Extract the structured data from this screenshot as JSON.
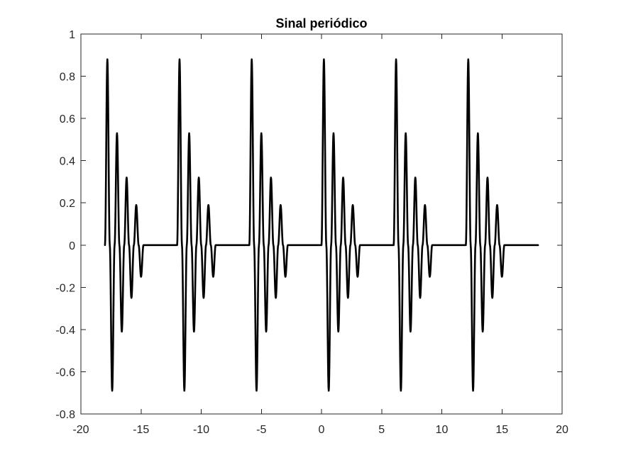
{
  "chart_data": {
    "type": "line",
    "title": "Sinal periódico",
    "xlabel": "",
    "ylabel": "",
    "xlim": [
      -20,
      20
    ],
    "ylim": [
      -0.8,
      1
    ],
    "xticks": [
      -20,
      -15,
      -10,
      -5,
      0,
      5,
      10,
      15,
      20
    ],
    "xtick_labels": [
      "-20",
      "-15",
      "-10",
      "-5",
      "0",
      "5",
      "10",
      "15",
      "20"
    ],
    "yticks": [
      -0.8,
      -0.6,
      -0.4,
      -0.2,
      0,
      0.2,
      0.4,
      0.6,
      0.8,
      1
    ],
    "ytick_labels": [
      "-0.8",
      "-0.6",
      "-0.4",
      "-0.2",
      "0",
      "0.2",
      "0.4",
      "0.6",
      "0.8",
      "1"
    ],
    "grid": false,
    "line_color": "#000000",
    "series": [
      {
        "x": [
          -18.0,
          -17.8,
          -17.6,
          -17.4,
          -17.2,
          -17.0,
          -16.8,
          -16.6,
          -16.4,
          -16.2,
          -16.0,
          -15.8,
          -15.6,
          -15.4,
          -15.2,
          -15.0,
          -14.8,
          -14.6,
          -14.4,
          -14.2,
          -14.0,
          -12.0,
          -11.8,
          -11.6,
          -11.4,
          -11.2,
          -11.0,
          -10.8,
          -10.6,
          -10.4,
          -10.2,
          -10.0,
          -9.8,
          -9.6,
          -9.4,
          -9.2,
          -9.0,
          -8.8,
          -8.6,
          -8.4,
          -8.2,
          -8.0,
          -6.0,
          -5.8,
          -5.6,
          -5.4,
          -5.2,
          -5.0,
          -4.8,
          -4.6,
          -4.4,
          -4.2,
          -4.0,
          -3.8,
          -3.6,
          -3.4,
          -3.2,
          -3.0,
          -2.8,
          -2.6,
          -2.4,
          -2.2,
          -2.0,
          0.0,
          0.2,
          0.4,
          0.6,
          0.8,
          1.0,
          1.2,
          1.4,
          1.6,
          1.8,
          2.0,
          2.2,
          2.4,
          2.6,
          2.8,
          3.0,
          3.2,
          3.4,
          3.6,
          3.8,
          4.0,
          6.0,
          6.2,
          6.4,
          6.6,
          6.8,
          7.0,
          7.2,
          7.4,
          7.6,
          7.8,
          8.0,
          8.2,
          8.4,
          8.6,
          8.8,
          9.0,
          9.2,
          9.4,
          9.6,
          9.8,
          10.0,
          12.0,
          12.2,
          12.4,
          12.6,
          12.8,
          13.0,
          13.2,
          13.4,
          13.6,
          13.8,
          14.0,
          14.2,
          14.4,
          14.6,
          14.8,
          15.0,
          15.2,
          15.4,
          15.6,
          15.8,
          16.0,
          18.0
        ],
        "y": [
          0,
          0.88,
          0,
          -0.69,
          0,
          0.53,
          0,
          -0.41,
          0,
          0.32,
          0,
          -0.25,
          0,
          0.19,
          0,
          -0.15,
          0,
          0,
          0,
          0,
          0,
          0,
          0.88,
          0,
          -0.69,
          0,
          0.53,
          0,
          -0.41,
          0,
          0.32,
          0,
          -0.25,
          0,
          0.19,
          0,
          -0.15,
          0,
          0,
          0,
          0,
          0,
          0,
          0.88,
          0,
          -0.69,
          0,
          0.53,
          0,
          -0.41,
          0,
          0.32,
          0,
          -0.25,
          0,
          0.19,
          0,
          -0.15,
          0,
          0,
          0,
          0,
          0,
          0,
          0.88,
          0,
          -0.69,
          0,
          0.53,
          0,
          -0.41,
          0,
          0.32,
          0,
          -0.25,
          0,
          0.19,
          0,
          -0.15,
          0,
          0,
          0,
          0,
          0,
          0,
          0.88,
          0,
          -0.69,
          0,
          0.53,
          0,
          -0.41,
          0,
          0.32,
          0,
          -0.25,
          0,
          0.19,
          0,
          -0.15,
          0,
          0,
          0,
          0,
          0,
          0,
          0.88,
          0,
          -0.69,
          0,
          0.53,
          0,
          -0.41,
          0,
          0.32,
          0,
          -0.25,
          0,
          0.19,
          0,
          -0.15,
          0,
          0,
          0,
          0,
          0,
          0
        ]
      }
    ]
  }
}
